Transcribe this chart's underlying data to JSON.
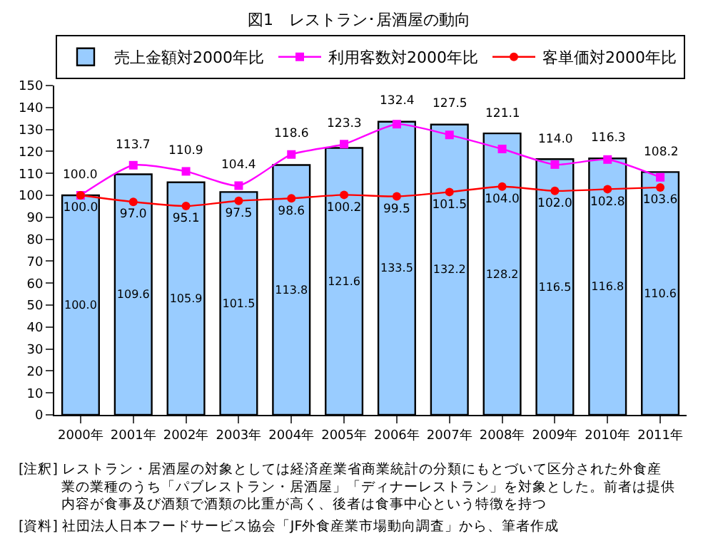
{
  "chart_data": {
    "type": "bar",
    "title": "図1　レストラン･居酒屋の動向",
    "categories": [
      "2000年",
      "2001年",
      "2002年",
      "2003年",
      "2004年",
      "2005年",
      "2006年",
      "2007年",
      "2008年",
      "2009年",
      "2010年",
      "2011年"
    ],
    "series": [
      {
        "name": "売上金額対2000年比",
        "color": "#99ccff",
        "values": [
          100.0,
          109.6,
          105.9,
          101.5,
          113.8,
          121.6,
          133.5,
          132.2,
          128.2,
          116.5,
          116.8,
          110.6
        ],
        "value_labels": [
          "100.0",
          "109.6",
          "105.9",
          "101.5",
          "113.8",
          "121.6",
          "133.5",
          "132.2",
          "128.2",
          "116.5",
          "116.8",
          "110.6"
        ]
      },
      {
        "name": "利用客数対2000年比",
        "type": "line",
        "color": "#ff00ff",
        "marker": "square",
        "values": [
          100.0,
          113.7,
          110.9,
          104.4,
          118.6,
          123.3,
          132.4,
          127.5,
          121.1,
          114.0,
          116.3,
          108.2
        ],
        "value_labels": [
          "100.0",
          "113.7",
          "110.9",
          "104.4",
          "118.6",
          "123.3",
          "132.4",
          "127.5",
          "121.1",
          "114.0",
          "116.3",
          "108.2"
        ]
      },
      {
        "name": "客単価対2000年比",
        "type": "line",
        "color": "#ff0000",
        "marker": "circle",
        "values": [
          100.0,
          97.0,
          95.1,
          97.5,
          98.6,
          100.2,
          99.5,
          101.5,
          104.0,
          102.0,
          102.8,
          103.6
        ],
        "value_labels": [
          "100.0",
          "97.0",
          "95.1",
          "97.5",
          "98.6",
          "100.2",
          "99.5",
          "101.5",
          "104.0",
          "102.0",
          "102.8",
          "103.6"
        ]
      }
    ],
    "ylim": [
      0,
      150
    ],
    "yticks": [
      0,
      10,
      20,
      30,
      40,
      50,
      60,
      70,
      80,
      90,
      100,
      110,
      120,
      130,
      140,
      150
    ],
    "grid": false,
    "legend": "top",
    "line_style": "solid",
    "annotations": [
      "[注釈] レストラン・居酒屋の対象としては経済産業省商業統計の分類にもとづいて区分された外食産業の業種のうち「パブレストラン・居酒屋」「ディナーレストラン」を対象とした。前者は提供内容が食事及び酒類で酒類の比重が高く、後者は食事中心という特徴を持つ",
      "[資料] 社団法人日本フードサービス協会「JF外食産業市場動向調査」から、筆者作成"
    ]
  }
}
